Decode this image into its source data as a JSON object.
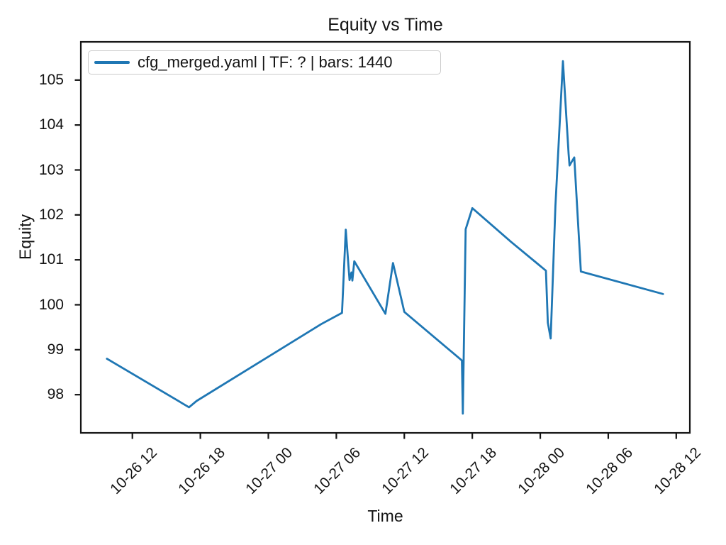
{
  "chart_data": {
    "type": "line",
    "title": "Equity vs Time",
    "xlabel": "Time",
    "ylabel": "Equity",
    "grid": false,
    "legend_position": "upper left",
    "legend": [
      {
        "label": "cfg_merged.yaml | TF: ? | bars: 1440",
        "color": "#1f77b4"
      }
    ],
    "x_origin": "10-26 12:00",
    "xlim_hours": [
      -4.55,
      49.2
    ],
    "ylim": [
      97.15,
      105.85
    ],
    "x_ticks": [
      "10-26 12",
      "10-26 18",
      "10-27 00",
      "10-27 06",
      "10-27 12",
      "10-27 18",
      "10-28 00",
      "10-28 06",
      "10-28 12"
    ],
    "y_ticks": [
      98,
      99,
      100,
      101,
      102,
      103,
      104,
      105
    ],
    "series": [
      {
        "name": "cfg_merged.yaml | TF: ? | bars: 1440",
        "color": "#1f77b4",
        "points": [
          {
            "time": "10-26 09:45",
            "equity": 98.8
          },
          {
            "time": "10-26 17:00",
            "equity": 97.72
          },
          {
            "time": "10-26 17:40",
            "equity": 97.86
          },
          {
            "time": "10-27 04:40",
            "equity": 99.57
          },
          {
            "time": "10-27 06:30",
            "equity": 99.82
          },
          {
            "time": "10-27 06:50",
            "equity": 101.67
          },
          {
            "time": "10-27 07:10",
            "equity": 100.55
          },
          {
            "time": "10-27 07:20",
            "equity": 100.72
          },
          {
            "time": "10-27 07:25",
            "equity": 100.54
          },
          {
            "time": "10-27 07:35",
            "equity": 100.97
          },
          {
            "time": "10-27 10:20",
            "equity": 99.8
          },
          {
            "time": "10-27 11:00",
            "equity": 100.93
          },
          {
            "time": "10-27 12:00",
            "equity": 99.84
          },
          {
            "time": "10-27 17:05",
            "equity": 98.76
          },
          {
            "time": "10-27 17:10",
            "equity": 97.58
          },
          {
            "time": "10-27 17:25",
            "equity": 101.68
          },
          {
            "time": "10-27 18:00",
            "equity": 102.15
          },
          {
            "time": "10-27 21:25",
            "equity": 101.4
          },
          {
            "time": "10-28 00:30",
            "equity": 100.76
          },
          {
            "time": "10-28 00:40",
            "equity": 99.6
          },
          {
            "time": "10-28 00:55",
            "equity": 99.25
          },
          {
            "time": "10-28 01:20",
            "equity": 102.2
          },
          {
            "time": "10-28 02:00",
            "equity": 105.42
          },
          {
            "time": "10-28 02:30",
            "equity": 103.36
          },
          {
            "time": "10-28 02:35",
            "equity": 103.1
          },
          {
            "time": "10-28 03:00",
            "equity": 103.28
          },
          {
            "time": "10-28 03:35",
            "equity": 100.74
          },
          {
            "time": "10-28 10:50",
            "equity": 100.24
          }
        ]
      }
    ]
  }
}
